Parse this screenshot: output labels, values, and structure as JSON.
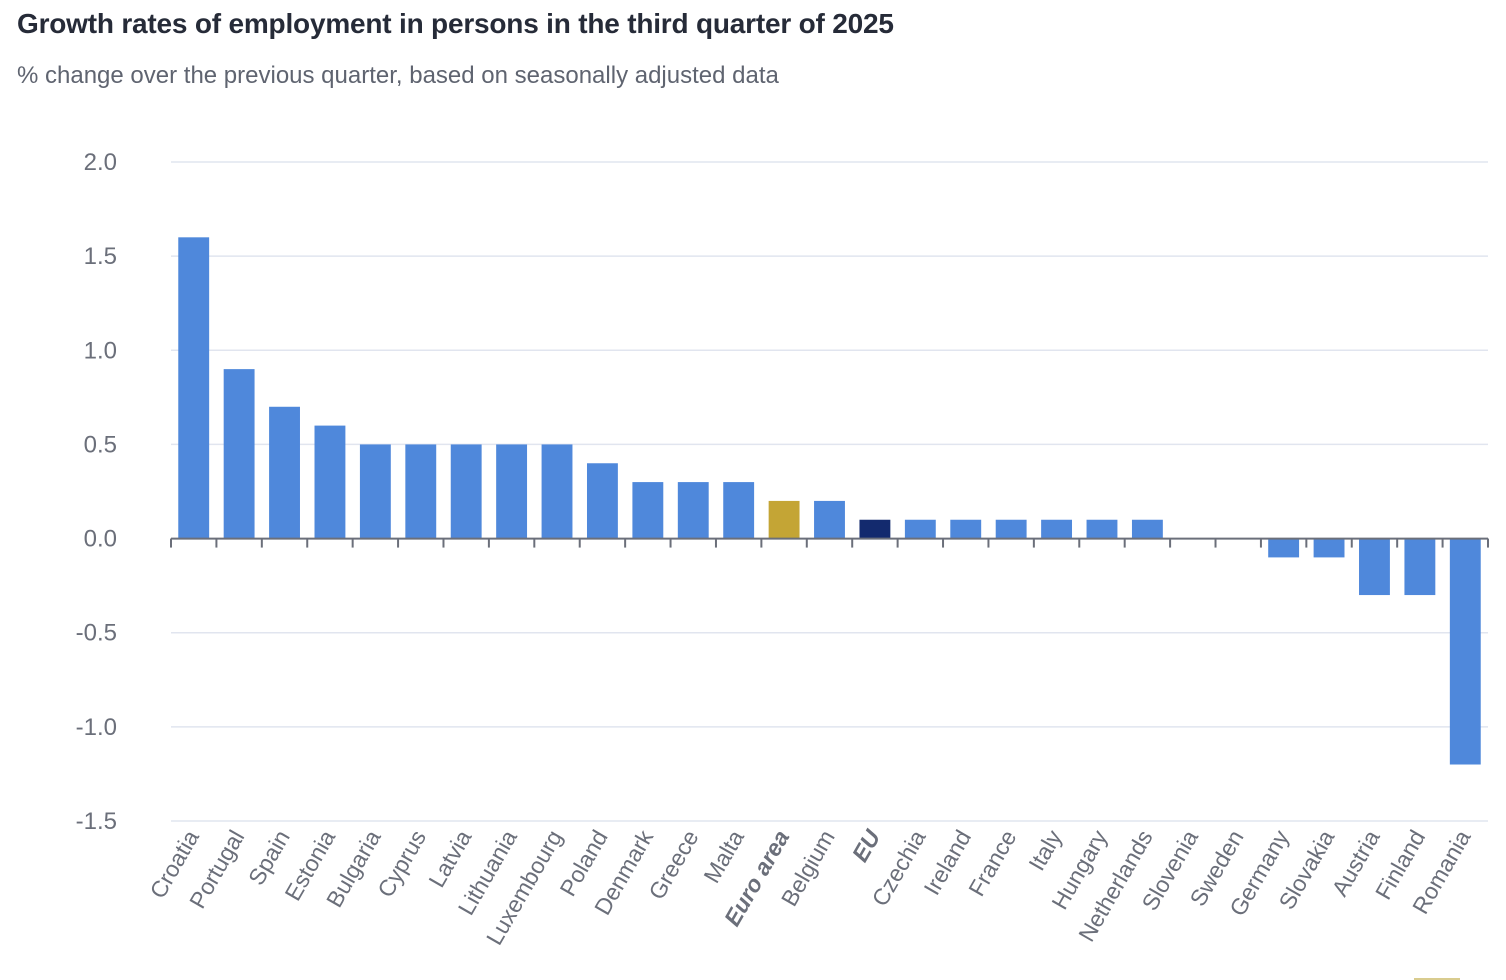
{
  "chart_data": {
    "type": "bar",
    "title": "Growth rates of employment in persons in the third quarter of 2025",
    "subtitle": "% change over the previous quarter, based on seasonally adjusted data",
    "xlabel": "",
    "ylabel": "",
    "ylim": [
      -1.5,
      2.0
    ],
    "yticks": [
      2.0,
      1.5,
      1.0,
      0.5,
      0.0,
      -0.5,
      -1.0,
      -1.5
    ],
    "ytick_labels": [
      "2.0",
      "1.5",
      "1.0",
      "0.5",
      "0.0",
      "-0.5",
      "-1.0",
      "-1.5"
    ],
    "grid": true,
    "categories": [
      "Croatia",
      "Portugal",
      "Spain",
      "Estonia",
      "Bulgaria",
      "Cyprus",
      "Latvia",
      "Lithuania",
      "Luxembourg",
      "Poland",
      "Denmark",
      "Greece",
      "Malta",
      "Euro area",
      "Belgium",
      "EU",
      "Czechia",
      "Ireland",
      "France",
      "Italy",
      "Hungary",
      "Netherlands",
      "Slovenia",
      "Sweden",
      "Germany",
      "Slovakia",
      "Austria",
      "Finland",
      "Romania"
    ],
    "values": [
      1.6,
      0.9,
      0.7,
      0.6,
      0.5,
      0.5,
      0.5,
      0.5,
      0.5,
      0.4,
      0.3,
      0.3,
      0.3,
      0.2,
      0.2,
      0.1,
      0.1,
      0.1,
      0.1,
      0.1,
      0.1,
      0.1,
      0.0,
      0.0,
      -0.1,
      -0.1,
      -0.3,
      -0.3,
      -1.2
    ],
    "highlight": {
      "Euro area": {
        "color": "#c4a535",
        "bold_label": true
      },
      "EU": {
        "color": "#132a6e",
        "bold_label": true
      }
    },
    "colors": {
      "default_bar": "#4f88db",
      "gridline": "#e1e5ef",
      "axis": "#6b6f7a",
      "text": "#6b6f7a",
      "title": "#262b38"
    }
  }
}
